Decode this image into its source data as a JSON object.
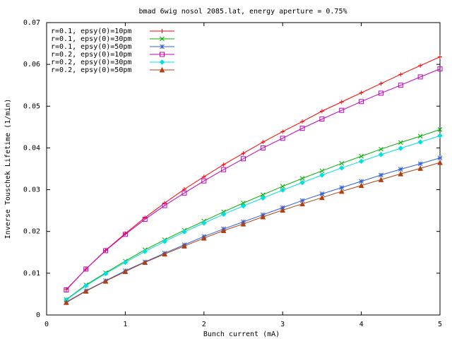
{
  "chart_data": {
    "type": "line",
    "title": "bmad 6wig nosol 2085.lat, energy aperture = 0.75%",
    "xlabel": "Bunch current (mA)",
    "ylabel": "Inverse Touschek Lifetime (1/min)",
    "xlim": [
      0,
      5
    ],
    "ylim": [
      0,
      0.07
    ],
    "xticks": [
      "0",
      "1",
      "2",
      "3",
      "4",
      "5"
    ],
    "yticks": [
      "0",
      "0.01",
      "0.02",
      "0.03",
      "0.04",
      "0.05",
      "0.06",
      "0.07"
    ],
    "grid": false,
    "legend_position": "top-left",
    "x": [
      0.25,
      0.5,
      0.75,
      1.0,
      1.25,
      1.5,
      1.75,
      2.0,
      2.25,
      2.5,
      2.75,
      3.0,
      3.25,
      3.5,
      3.75,
      4.0,
      4.25,
      4.5,
      4.75,
      5.0
    ],
    "series": [
      {
        "name": "r=0.1, epsy(0)=10pm",
        "color": "#ff0000",
        "marker": "plus",
        "values": [
          0.0061,
          0.011,
          0.0155,
          0.0195,
          0.0233,
          0.0268,
          0.0301,
          0.0331,
          0.036,
          0.0387,
          0.0414,
          0.0439,
          0.0463,
          0.0488,
          0.051,
          0.0532,
          0.0554,
          0.0576,
          0.0597,
          0.0618
        ]
      },
      {
        "name": "r=0.1, epsy(0)=30pm",
        "color": "#00b000",
        "marker": "cross",
        "values": [
          0.0037,
          0.0072,
          0.0101,
          0.0129,
          0.0156,
          0.018,
          0.0203,
          0.0225,
          0.0247,
          0.0268,
          0.0288,
          0.0308,
          0.0327,
          0.0345,
          0.0363,
          0.038,
          0.0397,
          0.0413,
          0.0428,
          0.0444
        ]
      },
      {
        "name": "r=0.1, epsy(0)=50pm",
        "color": "#3060e0",
        "marker": "star",
        "values": [
          0.0031,
          0.0058,
          0.0082,
          0.0106,
          0.0127,
          0.0148,
          0.0168,
          0.0188,
          0.0206,
          0.0223,
          0.024,
          0.0257,
          0.0274,
          0.029,
          0.0305,
          0.032,
          0.0335,
          0.0349,
          0.0362,
          0.0376
        ]
      },
      {
        "name": "r=0.2, epsy(0)=10pm",
        "color": "#c000c0",
        "marker": "square",
        "values": [
          0.006,
          0.011,
          0.0154,
          0.0193,
          0.0229,
          0.0262,
          0.0292,
          0.0321,
          0.0348,
          0.0374,
          0.04,
          0.0423,
          0.0447,
          0.0469,
          0.049,
          0.0511,
          0.0531,
          0.055,
          0.057,
          0.0589
        ]
      },
      {
        "name": "r=0.2, epsy(0)=30pm",
        "color": "#00e0e0",
        "marker": "diamond",
        "values": [
          0.0036,
          0.007,
          0.0099,
          0.0126,
          0.0152,
          0.0176,
          0.0199,
          0.022,
          0.0241,
          0.0261,
          0.028,
          0.0299,
          0.0317,
          0.0335,
          0.0352,
          0.0368,
          0.0384,
          0.0399,
          0.0414,
          0.0429
        ]
      },
      {
        "name": "r=0.2, epsy(0)=50pm",
        "color": "#b04010",
        "marker": "triangle",
        "values": [
          0.003,
          0.0057,
          0.0081,
          0.0104,
          0.0126,
          0.0146,
          0.0165,
          0.0184,
          0.0202,
          0.0218,
          0.0235,
          0.0251,
          0.0266,
          0.0281,
          0.0296,
          0.031,
          0.0324,
          0.0338,
          0.0351,
          0.0365
        ]
      }
    ]
  }
}
